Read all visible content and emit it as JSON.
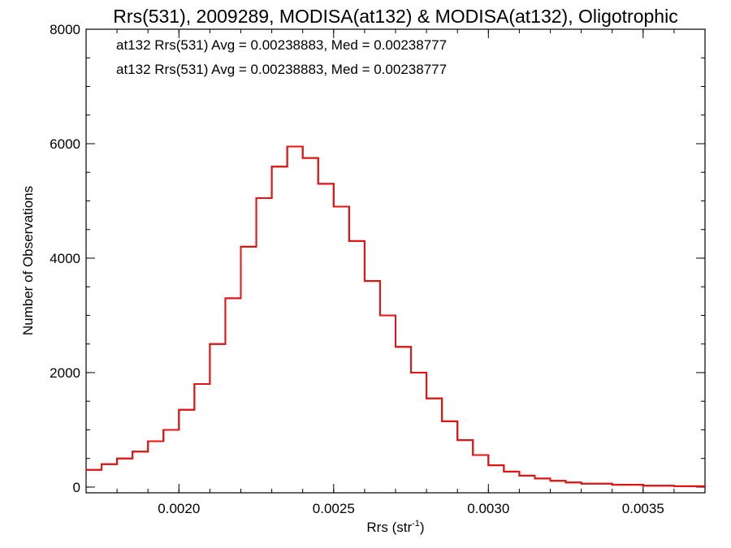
{
  "chart_data": {
    "type": "line",
    "title": "Rrs(531), 2009289, MODISA(at132) & MODISA(at132), Oligotrophic",
    "xlabel": "Rrs (str",
    "xlabel_sup": "-1",
    "xlabel_close": ")",
    "ylabel": "Number of Observations",
    "xlim": [
      0.0017,
      0.0037
    ],
    "ylim": [
      -100,
      8000
    ],
    "x_ticks": [
      {
        "v": 0.002,
        "label": "0.0020"
      },
      {
        "v": 0.0025,
        "label": "0.0025"
      },
      {
        "v": 0.003,
        "label": "0.0030"
      },
      {
        "v": 0.0035,
        "label": "0.0035"
      }
    ],
    "x_minor_step": 0.0001,
    "y_ticks": [
      {
        "v": 0,
        "label": "0"
      },
      {
        "v": 2000,
        "label": "2000"
      },
      {
        "v": 4000,
        "label": "4000"
      },
      {
        "v": 6000,
        "label": "6000"
      },
      {
        "v": 8000,
        "label": "8000"
      }
    ],
    "y_minor_step": 500,
    "annotations": [
      {
        "text": "at132 Rrs(531) Avg = 0.00238883, Med = 0.00238777",
        "color": "#000000"
      },
      {
        "text": "at132 Rrs(531) Avg = 0.00238883, Med = 0.00238777",
        "color": "#ee1111"
      }
    ],
    "series": [
      {
        "color": "#000000",
        "x": [
          0.0017,
          0.00175,
          0.0018,
          0.00185,
          0.0019,
          0.00195,
          0.002,
          0.00205,
          0.0021,
          0.00215,
          0.0022,
          0.00225,
          0.0023,
          0.00235,
          0.0024,
          0.00245,
          0.0025,
          0.00255,
          0.0026,
          0.00265,
          0.0027,
          0.00275,
          0.0028,
          0.00285,
          0.0029,
          0.00295,
          0.003,
          0.00305,
          0.0031,
          0.00315,
          0.0032,
          0.00325,
          0.0033,
          0.0034,
          0.0035,
          0.0036,
          0.0037
        ],
        "y": [
          300,
          400,
          500,
          620,
          800,
          1000,
          1350,
          1800,
          2500,
          3300,
          4200,
          5050,
          5600,
          5950,
          5750,
          5300,
          4900,
          4300,
          3600,
          3000,
          2450,
          2000,
          1550,
          1150,
          820,
          560,
          380,
          270,
          200,
          150,
          110,
          80,
          60,
          40,
          25,
          15,
          8
        ]
      },
      {
        "color": "#ee1111",
        "x": [
          0.0017,
          0.00175,
          0.0018,
          0.00185,
          0.0019,
          0.00195,
          0.002,
          0.00205,
          0.0021,
          0.00215,
          0.0022,
          0.00225,
          0.0023,
          0.00235,
          0.0024,
          0.00245,
          0.0025,
          0.00255,
          0.0026,
          0.00265,
          0.0027,
          0.00275,
          0.0028,
          0.00285,
          0.0029,
          0.00295,
          0.003,
          0.00305,
          0.0031,
          0.00315,
          0.0032,
          0.00325,
          0.0033,
          0.0034,
          0.0035,
          0.0036,
          0.0037
        ],
        "y": [
          300,
          400,
          500,
          620,
          800,
          1000,
          1350,
          1800,
          2500,
          3300,
          4200,
          5050,
          5600,
          5950,
          5750,
          5300,
          4900,
          4300,
          3600,
          3000,
          2450,
          2000,
          1550,
          1150,
          820,
          560,
          380,
          270,
          200,
          150,
          110,
          80,
          60,
          40,
          25,
          15,
          8
        ]
      }
    ]
  }
}
